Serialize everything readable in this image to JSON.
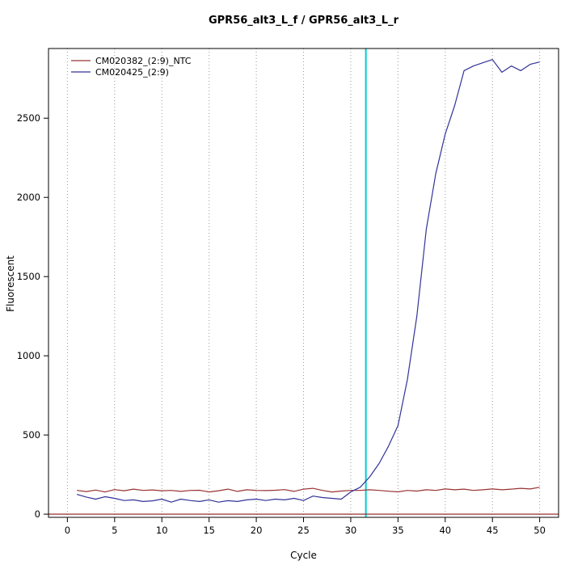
{
  "title": "GPR56_alt3_L_f / GPR56_alt3_L_r",
  "chart_data": {
    "type": "line",
    "title": "GPR56_alt3_L_f / GPR56_alt3_L_r",
    "xlabel": "Cycle",
    "ylabel": "Fluorescent",
    "x": [
      1,
      2,
      3,
      4,
      5,
      6,
      7,
      8,
      9,
      10,
      11,
      12,
      13,
      14,
      15,
      16,
      17,
      18,
      19,
      20,
      21,
      22,
      23,
      24,
      25,
      26,
      27,
      28,
      29,
      30,
      31,
      32,
      33,
      34,
      35,
      36,
      37,
      38,
      39,
      40,
      41,
      42,
      43,
      44,
      45,
      46,
      47,
      48,
      49,
      50
    ],
    "series": [
      {
        "name": "CM020382_(2:9)_NTC",
        "color": "#993333",
        "values": [
          150,
          143,
          152,
          140,
          155,
          148,
          158,
          150,
          153,
          148,
          150,
          144,
          150,
          151,
          140,
          148,
          158,
          144,
          154,
          150,
          149,
          151,
          155,
          144,
          158,
          163,
          150,
          140,
          146,
          150,
          150,
          154,
          150,
          145,
          141,
          150,
          146,
          154,
          150,
          159,
          154,
          158,
          150,
          154,
          159,
          154,
          158,
          163,
          159,
          170
        ]
      },
      {
        "name": "CM020425_(2:9)",
        "color": "#333399",
        "values": [
          125,
          108,
          95,
          110,
          100,
          86,
          90,
          80,
          84,
          95,
          76,
          95,
          86,
          80,
          90,
          76,
          85,
          80,
          90,
          95,
          86,
          95,
          90,
          100,
          86,
          114,
          105,
          100,
          95,
          140,
          170,
          235,
          320,
          430,
          560,
          850,
          1250,
          1800,
          2150,
          2400,
          2580,
          2800,
          2830,
          2850,
          2870,
          2790,
          2830,
          2800,
          2840,
          2855
        ]
      }
    ],
    "baseline_line": {
      "y": 0,
      "color": "#8B1A1A"
    },
    "ct_line": {
      "x": 31.6,
      "color": "#00CDCD"
    },
    "x_ticks": [
      0,
      5,
      10,
      15,
      20,
      25,
      30,
      35,
      40,
      45,
      50
    ],
    "y_ticks": [
      0,
      500,
      1000,
      1500,
      2000,
      2500
    ],
    "xlim": [
      -2,
      52
    ],
    "ylim": [
      -20,
      2940
    ],
    "grid": "vertical-dotted",
    "grid_color": "#999999",
    "legend_position": "top-left",
    "axis_color": "#000000"
  }
}
